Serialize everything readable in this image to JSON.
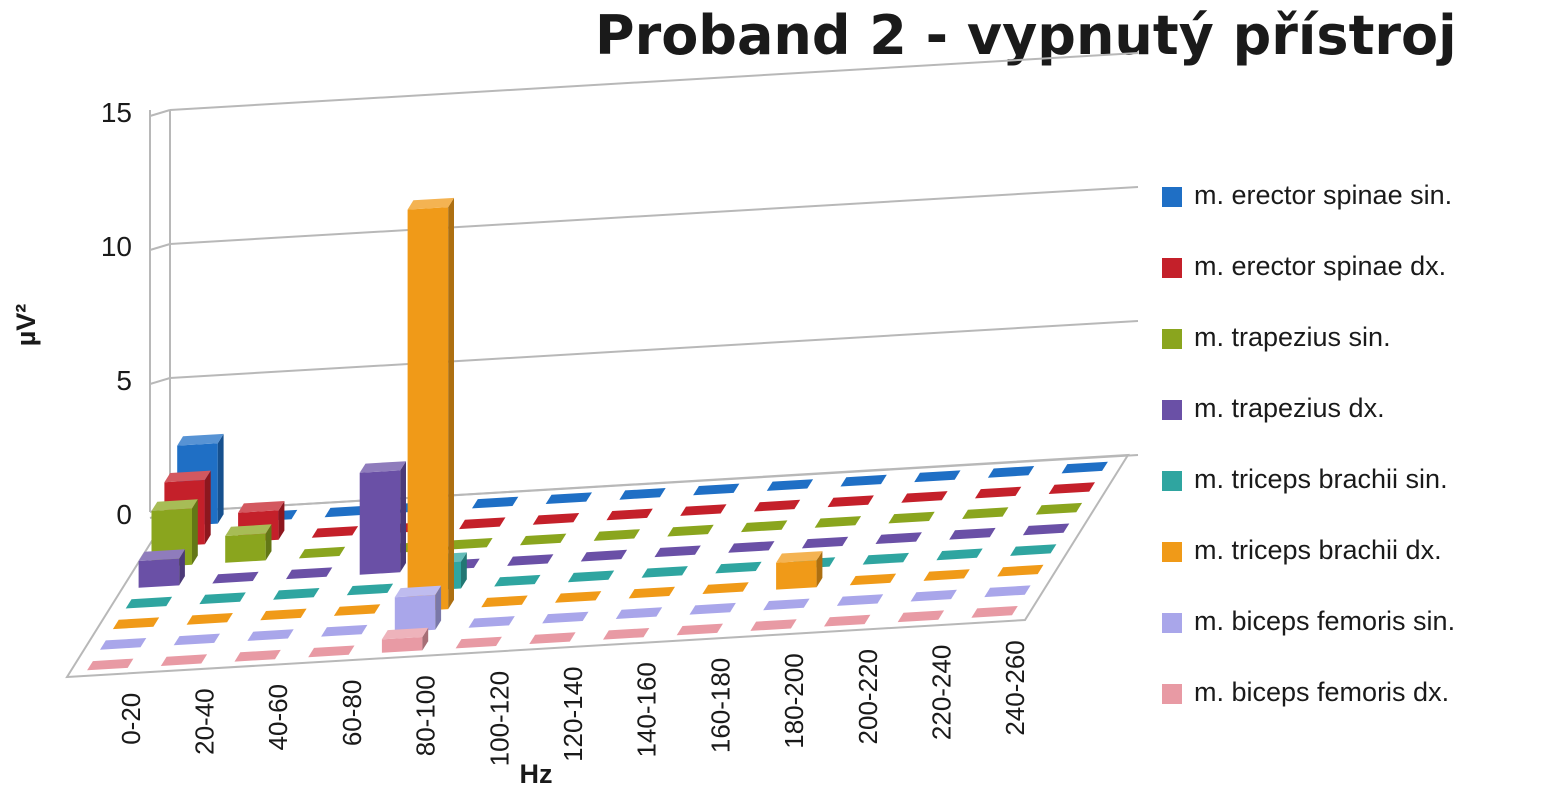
{
  "chart_data": {
    "type": "bar",
    "title": "Proband 2 - vypnutý přístroj",
    "xlabel": "Hz",
    "ylabel": "µV²",
    "ylim": [
      0,
      15
    ],
    "yticks": [
      "0",
      "5",
      "10",
      "15"
    ],
    "grid": true,
    "legend_position": "right",
    "categories": [
      "0-20",
      "20-40",
      "40-60",
      "60-80",
      "80-100",
      "100-120",
      "120-140",
      "140-160",
      "160-180",
      "180-200",
      "200-220",
      "220-240",
      "240-260"
    ],
    "series": [
      {
        "name": "m. erector spinae sin.",
        "color": "#1f6fc5",
        "values": [
          3.0,
          0,
          0,
          0,
          0,
          0,
          0,
          0,
          0,
          0,
          0,
          0,
          0
        ]
      },
      {
        "name": "m. erector spinae dx.",
        "color": "#c4202a",
        "values": [
          2.4,
          1.1,
          0,
          0,
          0,
          0,
          0,
          0,
          0,
          0,
          0,
          0,
          0
        ]
      },
      {
        "name": "m. trapezius sin.",
        "color": "#8aa51e",
        "values": [
          2.1,
          1.0,
          0,
          0,
          0,
          0,
          0,
          0,
          0,
          0,
          0,
          0,
          0
        ]
      },
      {
        "name": "m. trapezius dx.",
        "color": "#6a50a6",
        "values": [
          1.0,
          0,
          0,
          3.8,
          0,
          0,
          0,
          0,
          0,
          0,
          0,
          0,
          0
        ]
      },
      {
        "name": "m. triceps brachii sin.",
        "color": "#2fa5a0",
        "values": [
          0,
          0,
          0,
          0,
          1.0,
          0,
          0,
          0,
          0,
          0,
          0,
          0,
          0
        ]
      },
      {
        "name": "m. triceps brachii dx.",
        "color": "#f09a18",
        "values": [
          0,
          0,
          0,
          0,
          15.0,
          0,
          0,
          0,
          0,
          1.0,
          0,
          0,
          0
        ]
      },
      {
        "name": "m. biceps femoris sin.",
        "color": "#a9a6ea",
        "values": [
          0,
          0,
          0,
          0,
          1.3,
          0,
          0,
          0,
          0,
          0,
          0,
          0,
          0
        ]
      },
      {
        "name": "m. biceps femoris dx.",
        "color": "#e89aa4",
        "values": [
          0,
          0,
          0,
          0,
          0.5,
          0,
          0,
          0,
          0,
          0,
          0,
          0,
          0
        ]
      }
    ]
  }
}
